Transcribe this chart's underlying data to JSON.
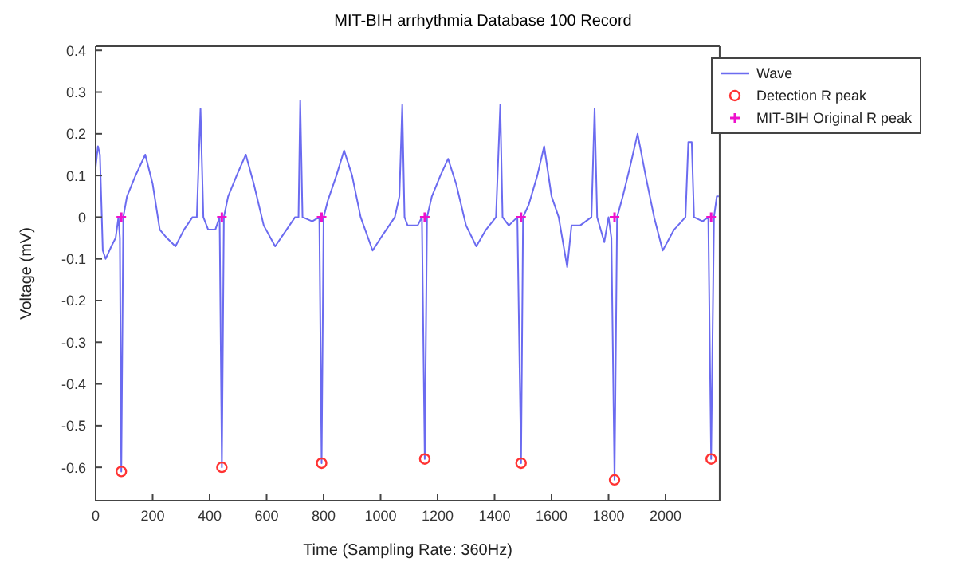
{
  "chart_data": {
    "type": "line",
    "title": "MIT-BIH arrhythmia Database 100 Record",
    "xlabel": "Time (Sampling Rate: 360Hz)",
    "ylabel": "Voltage (mV)",
    "xlim": [
      0,
      2190
    ],
    "xticks": [
      0,
      200,
      400,
      600,
      800,
      1000,
      1200,
      1400,
      1600,
      1800,
      2000
    ],
    "ylim": [
      -0.68,
      0.41
    ],
    "yticks": [
      -0.6,
      -0.5,
      -0.4,
      -0.3,
      -0.2,
      -0.1,
      0,
      0.1,
      0.2,
      0.3,
      0.4
    ],
    "legend": "top right",
    "series": [
      {
        "name": "Wave",
        "color": "#6b6bf0",
        "marker": "none",
        "line_style": "solid",
        "x": [
          0,
          8,
          15,
          25,
          35,
          55,
          70,
          80,
          85,
          90,
          97,
          110,
          140,
          174,
          200,
          225,
          250,
          280,
          310,
          340,
          355,
          368,
          378,
          395,
          420,
          435,
          443,
          450,
          465,
          495,
          527,
          555,
          590,
          630,
          670,
          700,
          712,
          718,
          726,
          760,
          785,
          793,
          800,
          815,
          845,
          872,
          900,
          930,
          972,
          1010,
          1050,
          1066,
          1076,
          1084,
          1095,
          1130,
          1145,
          1155,
          1163,
          1180,
          1210,
          1237,
          1265,
          1300,
          1336,
          1370,
          1405,
          1420,
          1428,
          1450,
          1480,
          1493,
          1500,
          1520,
          1550,
          1574,
          1600,
          1625,
          1655,
          1670,
          1700,
          1740,
          1751,
          1760,
          1785,
          1800,
          1810,
          1821,
          1830,
          1850,
          1875,
          1902,
          1930,
          1960,
          1990,
          2030,
          2070,
          2080,
          2092,
          2100,
          2130,
          2150,
          2160,
          2170,
          2180,
          2187
        ],
        "values": [
          0.12,
          0.17,
          0.15,
          -0.08,
          -0.1,
          -0.07,
          -0.05,
          0.0,
          -0.05,
          -0.61,
          0.0,
          0.05,
          0.1,
          0.15,
          0.08,
          -0.03,
          -0.05,
          -0.07,
          -0.03,
          0.0,
          0.0,
          0.26,
          0.0,
          -0.03,
          -0.03,
          0.0,
          -0.6,
          0.0,
          0.05,
          0.1,
          0.15,
          0.08,
          -0.02,
          -0.07,
          -0.03,
          0.0,
          0.0,
          0.28,
          0.0,
          -0.01,
          0.0,
          -0.59,
          0.0,
          0.04,
          0.1,
          0.16,
          0.1,
          0.0,
          -0.08,
          -0.04,
          0.0,
          0.05,
          0.27,
          0.0,
          -0.02,
          -0.02,
          0.0,
          -0.58,
          0.0,
          0.05,
          0.1,
          0.14,
          0.08,
          -0.02,
          -0.07,
          -0.03,
          0.0,
          0.27,
          0.0,
          -0.02,
          0.0,
          -0.59,
          0.0,
          0.03,
          0.1,
          0.17,
          0.05,
          0.0,
          -0.12,
          -0.02,
          -0.02,
          0.0,
          0.26,
          0.0,
          -0.06,
          0.0,
          -0.05,
          -0.63,
          0.0,
          0.05,
          0.12,
          0.2,
          0.1,
          0.0,
          -0.08,
          -0.03,
          0.0,
          0.18,
          0.18,
          0.0,
          -0.01,
          0.0,
          -0.58,
          0.0,
          0.05,
          0.05
        ]
      },
      {
        "name": "Detection R peak",
        "type": "scatter",
        "color": "#ff3333",
        "marker": "circle",
        "x": [
          90,
          443,
          793,
          1155,
          1493,
          1821,
          2160
        ],
        "values": [
          -0.61,
          -0.6,
          -0.59,
          -0.58,
          -0.59,
          -0.63,
          -0.58
        ]
      },
      {
        "name": "MIT-BIH Original R peak",
        "type": "scatter",
        "color": "#ee11cc",
        "marker": "cross",
        "x": [
          90,
          443,
          793,
          1155,
          1493,
          1821,
          2160
        ],
        "values": [
          0,
          0,
          0,
          0,
          0,
          0,
          0
        ]
      }
    ]
  }
}
